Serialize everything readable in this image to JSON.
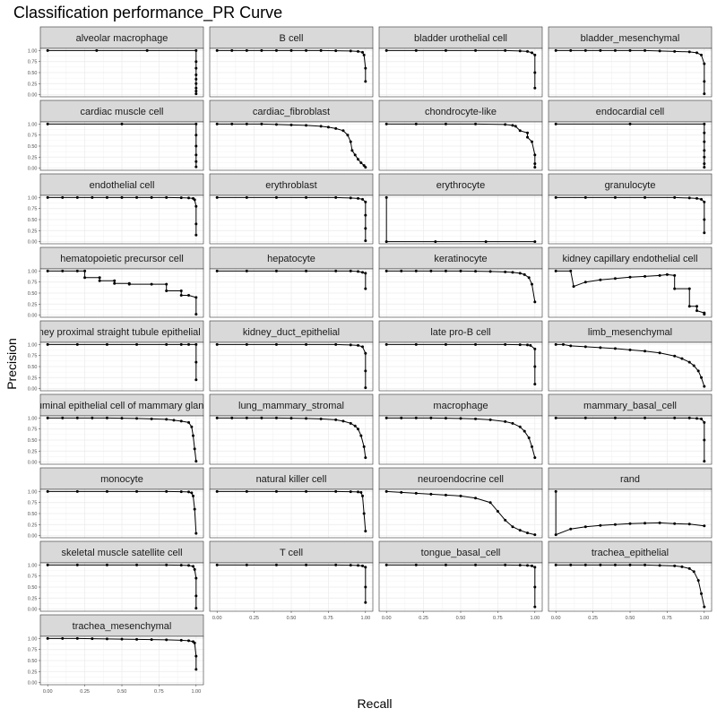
{
  "chart_data": {
    "type": "line",
    "title": "Classification performance_PR Curve",
    "xlabel": "Recall",
    "ylabel": "Precision",
    "xlim": [
      0,
      1
    ],
    "ylim": [
      0,
      1
    ],
    "x_ticks": [
      "0.00",
      "0.25",
      "0.50",
      "0.75",
      "1.00"
    ],
    "y_ticks": [
      "0.00",
      "0.25",
      "0.50",
      "0.75",
      "1.00"
    ],
    "grid": true,
    "series": [
      {
        "name": "alveolar macrophage",
        "x": [
          0,
          0.33,
          0.67,
          1,
          1,
          1,
          1,
          1,
          1,
          1,
          1,
          1
        ],
        "y": [
          1,
          1,
          1,
          1,
          0.75,
          0.6,
          0.45,
          0.35,
          0.25,
          0.15,
          0.08,
          0.02
        ]
      },
      {
        "name": "B cell",
        "x": [
          0,
          0.1,
          0.2,
          0.3,
          0.4,
          0.5,
          0.6,
          0.7,
          0.8,
          0.9,
          0.95,
          0.98,
          0.99,
          1,
          1
        ],
        "y": [
          1,
          1,
          1,
          1,
          1,
          1,
          1,
          1,
          0.995,
          0.99,
          0.98,
          0.96,
          0.9,
          0.6,
          0.3
        ]
      },
      {
        "name": "bladder urothelial cell",
        "x": [
          0,
          0.2,
          0.4,
          0.6,
          0.8,
          0.9,
          0.95,
          0.98,
          1,
          1,
          1
        ],
        "y": [
          1,
          1,
          1,
          1,
          1,
          0.99,
          0.98,
          0.95,
          0.9,
          0.5,
          0.15
        ]
      },
      {
        "name": "bladder_mesenchymal",
        "x": [
          0,
          0.1,
          0.2,
          0.3,
          0.4,
          0.5,
          0.6,
          0.7,
          0.8,
          0.9,
          0.95,
          0.98,
          1,
          1,
          1
        ],
        "y": [
          1,
          1,
          1,
          1,
          1,
          1,
          1,
          0.99,
          0.98,
          0.97,
          0.95,
          0.9,
          0.7,
          0.3,
          0.02
        ]
      },
      {
        "name": "cardiac muscle cell",
        "x": [
          0,
          0.5,
          1,
          1,
          1,
          1,
          1,
          1
        ],
        "y": [
          1,
          1,
          1,
          0.75,
          0.5,
          0.3,
          0.15,
          0.03
        ]
      },
      {
        "name": "cardiac_fibroblast",
        "x": [
          0,
          0.1,
          0.2,
          0.3,
          0.4,
          0.5,
          0.6,
          0.7,
          0.75,
          0.8,
          0.85,
          0.88,
          0.9,
          0.91,
          0.93,
          0.95,
          0.97,
          0.99,
          1
        ],
        "y": [
          1,
          1,
          1,
          1,
          0.99,
          0.98,
          0.97,
          0.95,
          0.93,
          0.9,
          0.85,
          0.75,
          0.6,
          0.4,
          0.3,
          0.2,
          0.12,
          0.06,
          0.02
        ]
      },
      {
        "name": "chondrocyte-like",
        "x": [
          0,
          0.2,
          0.4,
          0.6,
          0.8,
          0.85,
          0.87,
          0.9,
          0.95,
          0.95,
          0.98,
          1,
          1,
          1
        ],
        "y": [
          1,
          1,
          1,
          1,
          0.99,
          0.97,
          0.95,
          0.85,
          0.8,
          0.7,
          0.6,
          0.3,
          0.1,
          0.02
        ]
      },
      {
        "name": "endocardial cell",
        "x": [
          0,
          0.5,
          1,
          1,
          1,
          1,
          1,
          1,
          1
        ],
        "y": [
          1,
          1,
          1,
          0.8,
          0.6,
          0.4,
          0.25,
          0.1,
          0.02
        ]
      },
      {
        "name": "endothelial cell",
        "x": [
          0,
          0.1,
          0.2,
          0.3,
          0.4,
          0.5,
          0.6,
          0.7,
          0.8,
          0.9,
          0.95,
          0.98,
          0.99,
          1,
          1,
          1
        ],
        "y": [
          1,
          1,
          1,
          1,
          1,
          1,
          1,
          1,
          1,
          0.995,
          0.99,
          0.98,
          0.95,
          0.8,
          0.4,
          0.15
        ]
      },
      {
        "name": "erythroblast",
        "x": [
          0,
          0.2,
          0.4,
          0.6,
          0.8,
          0.9,
          0.95,
          0.98,
          1,
          1,
          1,
          1
        ],
        "y": [
          1,
          1,
          1,
          1,
          1,
          0.99,
          0.98,
          0.96,
          0.9,
          0.6,
          0.3,
          0.02
        ]
      },
      {
        "name": "erythrocyte",
        "x": [
          0,
          0,
          0.33,
          0.67,
          1
        ],
        "y": [
          1,
          0,
          0,
          0,
          0
        ]
      },
      {
        "name": "granulocyte",
        "x": [
          0,
          0.2,
          0.4,
          0.6,
          0.8,
          0.9,
          0.95,
          0.98,
          1,
          1,
          1
        ],
        "y": [
          1,
          1,
          1,
          1,
          1,
          0.99,
          0.98,
          0.96,
          0.9,
          0.5,
          0.2
        ]
      },
      {
        "name": "hematopoietic precursor cell",
        "x": [
          0,
          0.1,
          0.2,
          0.25,
          0.25,
          0.35,
          0.35,
          0.45,
          0.45,
          0.55,
          0.55,
          0.7,
          0.8,
          0.8,
          0.9,
          0.9,
          0.95,
          1,
          1
        ],
        "y": [
          1,
          1,
          1,
          1,
          0.85,
          0.85,
          0.78,
          0.78,
          0.72,
          0.72,
          0.7,
          0.7,
          0.7,
          0.55,
          0.55,
          0.45,
          0.45,
          0.4,
          0.02
        ]
      },
      {
        "name": "hepatocyte",
        "x": [
          0,
          0.2,
          0.4,
          0.6,
          0.8,
          0.9,
          0.95,
          0.98,
          1,
          1
        ],
        "y": [
          1,
          1,
          1,
          1,
          1,
          1,
          0.99,
          0.97,
          0.95,
          0.6
        ]
      },
      {
        "name": "keratinocyte",
        "x": [
          0,
          0.1,
          0.2,
          0.3,
          0.4,
          0.5,
          0.6,
          0.7,
          0.8,
          0.85,
          0.9,
          0.93,
          0.96,
          0.98,
          1
        ],
        "y": [
          1,
          1,
          1,
          1,
          1,
          1,
          0.995,
          0.99,
          0.98,
          0.97,
          0.95,
          0.92,
          0.85,
          0.7,
          0.3
        ]
      },
      {
        "name": "kidney capillary endothelial cell",
        "x": [
          0,
          0.1,
          0.12,
          0.2,
          0.3,
          0.4,
          0.5,
          0.6,
          0.7,
          0.75,
          0.8,
          0.8,
          0.9,
          0.9,
          0.95,
          0.95,
          1,
          1
        ],
        "y": [
          1,
          1,
          0.65,
          0.75,
          0.8,
          0.83,
          0.86,
          0.88,
          0.9,
          0.92,
          0.9,
          0.6,
          0.6,
          0.2,
          0.2,
          0.1,
          0.05,
          0.02
        ]
      },
      {
        "name": "kidney proximal straight tubule epithelial cell",
        "x": [
          0,
          0.2,
          0.4,
          0.6,
          0.8,
          0.9,
          0.95,
          1,
          1,
          1
        ],
        "y": [
          1,
          1,
          1,
          1,
          1,
          1,
          1,
          1,
          0.6,
          0.2
        ]
      },
      {
        "name": "kidney_duct_epithelial",
        "x": [
          0,
          0.2,
          0.4,
          0.6,
          0.8,
          0.9,
          0.95,
          0.98,
          1,
          1,
          1
        ],
        "y": [
          1,
          1,
          1,
          1,
          1,
          0.99,
          0.98,
          0.95,
          0.8,
          0.4,
          0.02
        ]
      },
      {
        "name": "late pro-B cell",
        "x": [
          0,
          0.2,
          0.4,
          0.6,
          0.8,
          0.9,
          0.95,
          0.97,
          1,
          1,
          1
        ],
        "y": [
          1,
          1,
          1,
          1,
          1,
          0.995,
          0.99,
          0.98,
          0.9,
          0.5,
          0.1
        ]
      },
      {
        "name": "limb_mesenchymal",
        "x": [
          0,
          0.05,
          0.1,
          0.2,
          0.3,
          0.4,
          0.5,
          0.6,
          0.7,
          0.8,
          0.85,
          0.9,
          0.93,
          0.96,
          0.98,
          1
        ],
        "y": [
          1,
          1,
          0.97,
          0.95,
          0.93,
          0.91,
          0.88,
          0.85,
          0.81,
          0.74,
          0.68,
          0.6,
          0.52,
          0.4,
          0.25,
          0.05
        ]
      },
      {
        "name": "luminal epithelial cell of mammary gland",
        "x": [
          0,
          0.1,
          0.2,
          0.3,
          0.4,
          0.5,
          0.6,
          0.7,
          0.8,
          0.85,
          0.9,
          0.95,
          0.97,
          0.98,
          0.99,
          1
        ],
        "y": [
          1,
          1,
          1,
          1,
          1,
          0.995,
          0.99,
          0.98,
          0.97,
          0.95,
          0.93,
          0.9,
          0.8,
          0.6,
          0.3,
          0.02
        ]
      },
      {
        "name": "lung_mammary_stromal",
        "x": [
          0,
          0.1,
          0.2,
          0.3,
          0.4,
          0.5,
          0.6,
          0.7,
          0.8,
          0.85,
          0.9,
          0.93,
          0.95,
          0.97,
          0.99,
          1
        ],
        "y": [
          1,
          1,
          1,
          1,
          1,
          0.995,
          0.99,
          0.98,
          0.96,
          0.93,
          0.88,
          0.82,
          0.75,
          0.6,
          0.35,
          0.1
        ]
      },
      {
        "name": "macrophage",
        "x": [
          0,
          0.1,
          0.2,
          0.3,
          0.4,
          0.5,
          0.6,
          0.7,
          0.8,
          0.85,
          0.9,
          0.93,
          0.96,
          0.98,
          1
        ],
        "y": [
          1,
          1,
          1,
          1,
          0.995,
          0.99,
          0.98,
          0.96,
          0.92,
          0.88,
          0.8,
          0.7,
          0.55,
          0.35,
          0.1
        ]
      },
      {
        "name": "mammary_basal_cell",
        "x": [
          0,
          0.2,
          0.4,
          0.6,
          0.8,
          0.9,
          0.95,
          0.98,
          1,
          1,
          1
        ],
        "y": [
          1,
          1,
          1,
          1,
          1,
          1,
          0.99,
          0.98,
          0.9,
          0.5,
          0.02
        ]
      },
      {
        "name": "monocyte",
        "x": [
          0,
          0.2,
          0.4,
          0.6,
          0.8,
          0.9,
          0.95,
          0.97,
          0.98,
          0.99,
          1
        ],
        "y": [
          1,
          1,
          1,
          1,
          1,
          0.995,
          0.99,
          0.97,
          0.9,
          0.6,
          0.05
        ]
      },
      {
        "name": "natural killer cell",
        "x": [
          0,
          0.2,
          0.4,
          0.6,
          0.8,
          0.9,
          0.95,
          0.97,
          0.98,
          0.99,
          1
        ],
        "y": [
          1,
          1,
          1,
          1,
          1,
          0.995,
          0.99,
          0.98,
          0.9,
          0.5,
          0.1
        ]
      },
      {
        "name": "neuroendocrine cell",
        "x": [
          0,
          0.1,
          0.2,
          0.3,
          0.4,
          0.5,
          0.6,
          0.7,
          0.75,
          0.8,
          0.85,
          0.9,
          0.95,
          1
        ],
        "y": [
          1,
          0.98,
          0.96,
          0.94,
          0.92,
          0.9,
          0.85,
          0.75,
          0.55,
          0.35,
          0.2,
          0.12,
          0.06,
          0.02
        ]
      },
      {
        "name": "rand",
        "x": [
          0,
          0,
          0.1,
          0.2,
          0.3,
          0.4,
          0.5,
          0.6,
          0.7,
          0.8,
          0.9,
          1
        ],
        "y": [
          1,
          0.02,
          0.15,
          0.2,
          0.23,
          0.25,
          0.27,
          0.28,
          0.29,
          0.27,
          0.26,
          0.22
        ]
      },
      {
        "name": "skeletal muscle satellite cell",
        "x": [
          0,
          0.2,
          0.4,
          0.6,
          0.8,
          0.9,
          0.95,
          0.98,
          0.99,
          1,
          1,
          1
        ],
        "y": [
          1,
          1,
          1,
          1,
          1,
          0.995,
          0.99,
          0.97,
          0.9,
          0.7,
          0.3,
          0.02
        ]
      },
      {
        "name": "T cell",
        "x": [
          0,
          0.2,
          0.4,
          0.6,
          0.8,
          0.9,
          0.95,
          0.98,
          1,
          1,
          1
        ],
        "y": [
          1,
          1,
          1,
          1,
          1,
          0.995,
          0.99,
          0.98,
          0.95,
          0.5,
          0.15
        ]
      },
      {
        "name": "tongue_basal_cell",
        "x": [
          0,
          0.2,
          0.4,
          0.6,
          0.8,
          0.9,
          0.95,
          0.98,
          1,
          1,
          1
        ],
        "y": [
          1,
          1,
          1,
          1,
          1,
          0.995,
          0.99,
          0.98,
          0.95,
          0.5,
          0.05
        ]
      },
      {
        "name": "trachea_epithelial",
        "x": [
          0,
          0.1,
          0.2,
          0.3,
          0.4,
          0.5,
          0.6,
          0.7,
          0.8,
          0.85,
          0.9,
          0.93,
          0.96,
          0.98,
          1
        ],
        "y": [
          1,
          1,
          1,
          1,
          1,
          1,
          1,
          0.99,
          0.98,
          0.96,
          0.92,
          0.85,
          0.65,
          0.35,
          0.05
        ]
      },
      {
        "name": "trachea_mesenchymal",
        "x": [
          0,
          0.1,
          0.2,
          0.3,
          0.4,
          0.5,
          0.6,
          0.7,
          0.8,
          0.9,
          0.95,
          0.98,
          0.99,
          1,
          1
        ],
        "y": [
          1,
          1,
          1,
          0.995,
          0.99,
          0.985,
          0.98,
          0.975,
          0.97,
          0.96,
          0.95,
          0.93,
          0.9,
          0.6,
          0.3
        ]
      }
    ]
  }
}
